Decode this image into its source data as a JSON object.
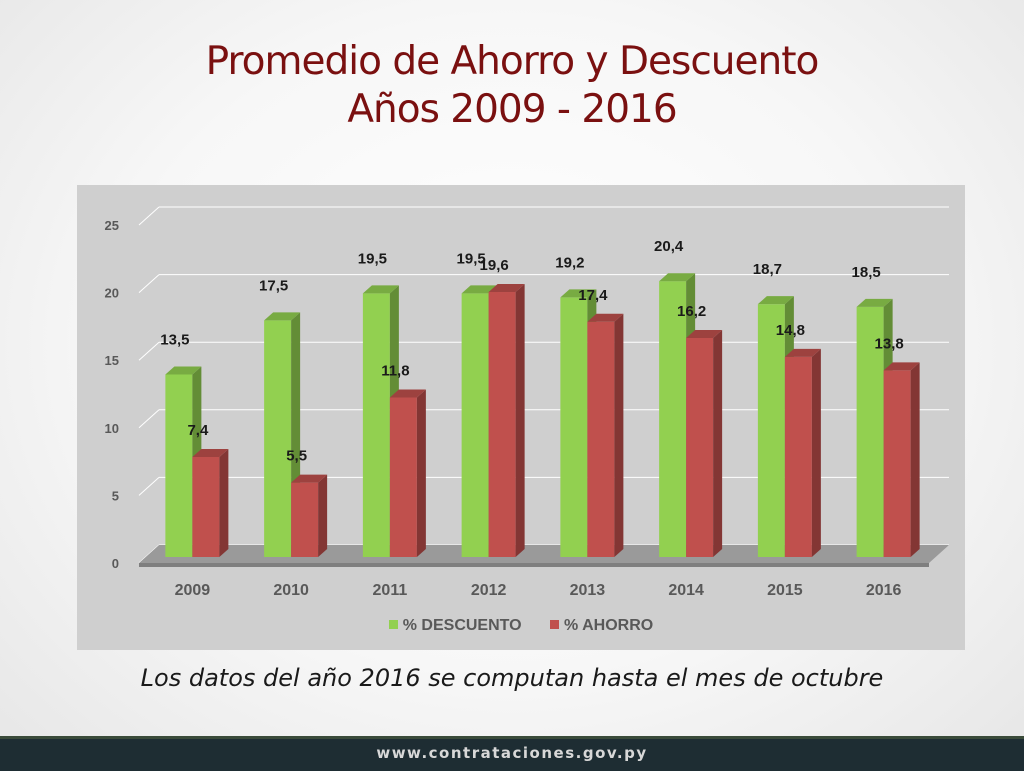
{
  "title": {
    "line1": "Promedio de Ahorro y Descuento",
    "line2": "Años 2009 - 2016"
  },
  "chart_data": {
    "type": "bar",
    "categories": [
      "2009",
      "2010",
      "2011",
      "2012",
      "2013",
      "2014",
      "2015",
      "2016"
    ],
    "series": [
      {
        "name": "% DESCUENTO",
        "color": "#92d050",
        "values": [
          13.5,
          17.5,
          19.5,
          19.5,
          19.2,
          20.4,
          18.7,
          18.5
        ],
        "labels": [
          "13,5",
          "17,5",
          "19,5",
          "19,5",
          "19,2",
          "20,4",
          "18,7",
          "18,5"
        ]
      },
      {
        "name": "% AHORRO",
        "color": "#c0504d",
        "values": [
          7.4,
          5.5,
          11.8,
          19.6,
          17.4,
          16.2,
          14.8,
          13.8
        ],
        "labels": [
          "7,4",
          "5,5",
          "11,8",
          "19,6",
          "17,4",
          "16,2",
          "14,8",
          "13,8"
        ]
      }
    ],
    "y_ticks": [
      "0",
      "5",
      "10",
      "15",
      "20",
      "25"
    ],
    "ylim": [
      0,
      25
    ],
    "grid": true
  },
  "note": "Los datos del año 2016 se computan hasta el mes de octubre",
  "footer": "www.contrataciones.gov.py"
}
